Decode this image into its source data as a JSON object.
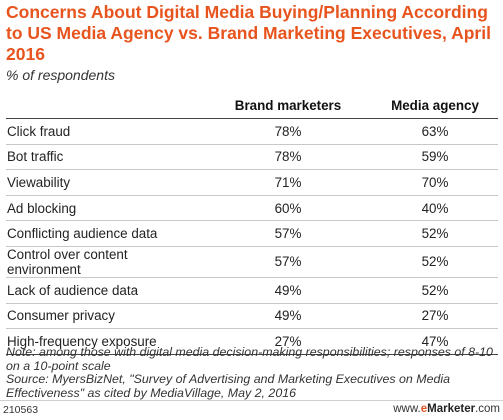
{
  "chart_data": {
    "type": "table",
    "title": "Concerns About Digital Media Buying/Planning According to US Media Agency vs. Brand Marketing Executives, April 2016",
    "subtitle": "% of respondents",
    "columns": [
      "Brand marketers",
      "Media agency"
    ],
    "rows": [
      {
        "label": "Click fraud",
        "values": [
          "78%",
          "63%"
        ]
      },
      {
        "label": "Bot traffic",
        "values": [
          "78%",
          "59%"
        ]
      },
      {
        "label": "Viewability",
        "values": [
          "71%",
          "70%"
        ]
      },
      {
        "label": "Ad blocking",
        "values": [
          "60%",
          "40%"
        ]
      },
      {
        "label": "Conflicting audience data",
        "values": [
          "57%",
          "52%"
        ]
      },
      {
        "label": "Control over content environment",
        "values": [
          "57%",
          "52%"
        ]
      },
      {
        "label": "Lack of audience data",
        "values": [
          "49%",
          "52%"
        ]
      },
      {
        "label": "Consumer privacy",
        "values": [
          "49%",
          "27%"
        ]
      },
      {
        "label": "High-frequency exposure",
        "values": [
          "27%",
          "47%"
        ]
      }
    ],
    "note": "Note: among those with digital media decision-making responsibilities; responses of 8-10 on a 10-point scale",
    "source": "Source: MyersBizNet, \"Survey of Advertising and Marketing Executives on Media Effectiveness\" as cited by MediaVillage, May 2, 2016"
  },
  "footer": {
    "chart_id": "210563",
    "site_prefix": "www.",
    "site_e": "e",
    "site_rest": "Marketer",
    "site_suffix": ".com"
  },
  "colors": {
    "title": "#e8541e",
    "brand_accent": "#e8541e"
  }
}
